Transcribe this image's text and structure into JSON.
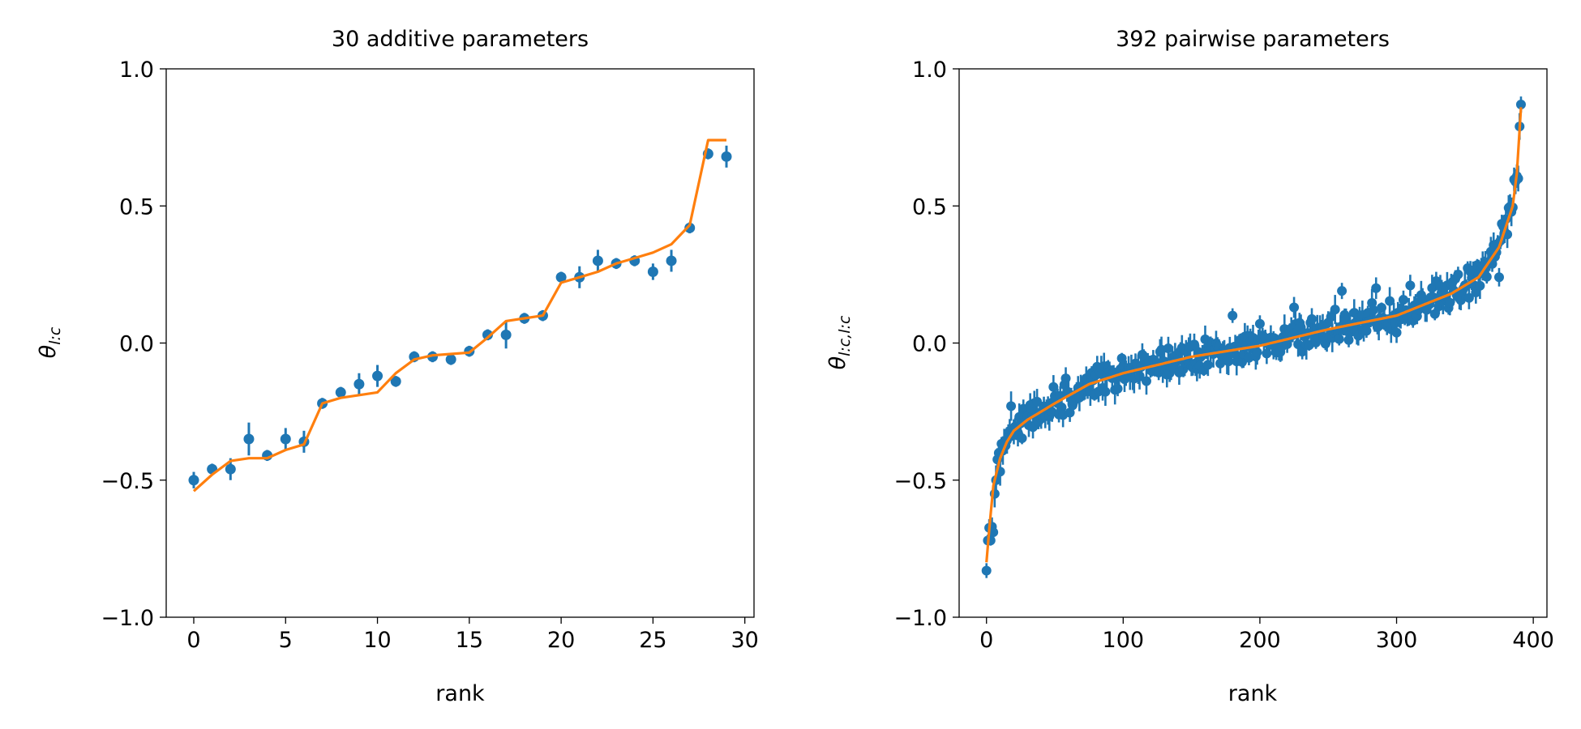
{
  "chart_data": [
    {
      "type": "scatter",
      "title": "30 additive parameters",
      "xlabel": "rank",
      "ylabel": "θ",
      "ylabel_sub": "l:c",
      "xlim": [
        -1.5,
        30.5
      ],
      "ylim": [
        -1.0,
        1.0
      ],
      "xticks": [
        0,
        5,
        10,
        15,
        20,
        25,
        30
      ],
      "yticks": [
        -1.0,
        -0.5,
        0.0,
        0.5,
        1.0
      ],
      "xtick_labels": [
        "0",
        "5",
        "10",
        "15",
        "20",
        "25",
        "30"
      ],
      "ytick_labels": [
        "−1.0",
        "−0.5",
        "0.0",
        "0.5",
        "1.0"
      ],
      "grid": false,
      "colors": {
        "points": "#1f77b4",
        "line": "#ff7f0e"
      },
      "series": [
        {
          "kind": "errorbar-points",
          "x": [
            0,
            1,
            2,
            3,
            4,
            5,
            6,
            7,
            8,
            9,
            10,
            11,
            12,
            13,
            14,
            15,
            16,
            17,
            18,
            19,
            20,
            21,
            22,
            23,
            24,
            25,
            26,
            27,
            28,
            29
          ],
          "y": [
            -0.5,
            -0.46,
            -0.46,
            -0.35,
            -0.41,
            -0.35,
            -0.36,
            -0.22,
            -0.18,
            -0.15,
            -0.12,
            -0.14,
            -0.05,
            -0.05,
            -0.06,
            -0.03,
            0.03,
            0.03,
            0.09,
            0.1,
            0.24,
            0.24,
            0.3,
            0.29,
            0.3,
            0.26,
            0.3,
            0.42,
            0.69,
            0.68
          ],
          "yerr": [
            0.03,
            0.02,
            0.04,
            0.06,
            0.02,
            0.04,
            0.04,
            0.02,
            0.02,
            0.04,
            0.04,
            0.02,
            0.02,
            0.02,
            0.02,
            0.02,
            0.02,
            0.05,
            0.02,
            0.02,
            0.02,
            0.04,
            0.04,
            0.02,
            0.02,
            0.03,
            0.04,
            0.02,
            0.02,
            0.04
          ]
        },
        {
          "kind": "line",
          "x": [
            0,
            1,
            2,
            3,
            4,
            5,
            6,
            7,
            8,
            9,
            10,
            11,
            12,
            13,
            14,
            15,
            16,
            17,
            18,
            19,
            20,
            21,
            22,
            23,
            24,
            25,
            26,
            27,
            28,
            29
          ],
          "y": [
            -0.54,
            -0.48,
            -0.43,
            -0.42,
            -0.42,
            -0.39,
            -0.37,
            -0.22,
            -0.2,
            -0.19,
            -0.18,
            -0.11,
            -0.06,
            -0.045,
            -0.04,
            -0.035,
            0.02,
            0.08,
            0.09,
            0.1,
            0.22,
            0.24,
            0.26,
            0.29,
            0.31,
            0.33,
            0.36,
            0.43,
            0.74,
            0.74
          ]
        }
      ]
    },
    {
      "type": "scatter",
      "title": "392 pairwise parameters",
      "xlabel": "rank",
      "ylabel": "θ",
      "ylabel_sub": "l:c,l:c",
      "xlim": [
        -20,
        410
      ],
      "ylim": [
        -1.0,
        1.0
      ],
      "xticks": [
        0,
        100,
        200,
        300,
        400
      ],
      "yticks": [
        -1.0,
        -0.5,
        0.0,
        0.5,
        1.0
      ],
      "xtick_labels": [
        "0",
        "100",
        "200",
        "300",
        "400"
      ],
      "ytick_labels": [
        "−1.0",
        "−0.5",
        "0.0",
        "0.5",
        "1.0"
      ],
      "grid": false,
      "colors": {
        "points": "#1f77b4",
        "line": "#ff7f0e"
      },
      "n_points": 392,
      "trend_knots": {
        "x": [
          0,
          2,
          5,
          10,
          15,
          20,
          30,
          50,
          75,
          100,
          150,
          200,
          250,
          300,
          340,
          360,
          375,
          385,
          388,
          390,
          391
        ],
        "y": [
          -0.8,
          -0.68,
          -0.52,
          -0.42,
          -0.36,
          -0.32,
          -0.28,
          -0.22,
          -0.15,
          -0.11,
          -0.05,
          -0.01,
          0.05,
          0.1,
          0.18,
          0.24,
          0.35,
          0.5,
          0.62,
          0.78,
          0.86
        ]
      },
      "scatter_spread": 0.05,
      "yerr_typical": 0.03,
      "highlighted_points": [
        {
          "x": 0,
          "y": -0.83
        },
        {
          "x": 1,
          "y": -0.72
        },
        {
          "x": 3,
          "y": -0.72
        },
        {
          "x": 4,
          "y": -0.67
        },
        {
          "x": 5,
          "y": -0.69
        },
        {
          "x": 6,
          "y": -0.55
        },
        {
          "x": 7,
          "y": -0.5
        },
        {
          "x": 18,
          "y": -0.23
        },
        {
          "x": 140,
          "y": -0.06
        },
        {
          "x": 180,
          "y": 0.1
        },
        {
          "x": 200,
          "y": 0.07
        },
        {
          "x": 225,
          "y": 0.13
        },
        {
          "x": 260,
          "y": 0.19
        },
        {
          "x": 285,
          "y": 0.2
        },
        {
          "x": 310,
          "y": 0.21
        },
        {
          "x": 345,
          "y": 0.25
        },
        {
          "x": 375,
          "y": 0.24
        },
        {
          "x": 389,
          "y": 0.6
        },
        {
          "x": 390,
          "y": 0.79
        },
        {
          "x": 391,
          "y": 0.87
        }
      ]
    }
  ]
}
